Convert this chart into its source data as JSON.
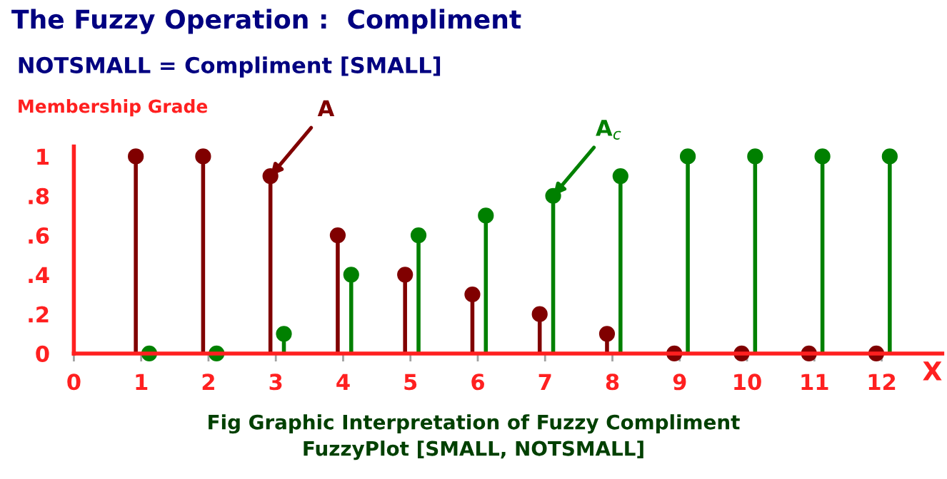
{
  "chart_data": {
    "type": "lollipop",
    "title": "The Fuzzy Operation :  Compliment",
    "subtitle": "NOTSMALL = Compliment [SMALL]",
    "ylabel": "Membership Grade",
    "xlabel": "X",
    "xlim": [
      0,
      12.9
    ],
    "xticks": [
      0,
      1,
      2,
      3,
      4,
      5,
      6,
      7,
      8,
      9,
      10,
      11,
      12
    ],
    "ylim": [
      0,
      1.05
    ],
    "yticks": [
      {
        "value": 0,
        "label": "0"
      },
      {
        "value": 0.2,
        "label": ".2"
      },
      {
        "value": 0.4,
        "label": ".4"
      },
      {
        "value": 0.6,
        "label": ".6"
      },
      {
        "value": 0.8,
        "label": ".8"
      },
      {
        "value": 1,
        "label": "1"
      }
    ],
    "marker": "circle",
    "grid": false,
    "legend": false,
    "series": [
      {
        "color": "#800000",
        "x": [
          0.92,
          1.92,
          2.92,
          3.92,
          4.92,
          5.92,
          6.92,
          7.92,
          8.92,
          9.92,
          10.92,
          11.92
        ],
        "values": [
          1,
          1,
          0.9,
          0.6,
          0.4,
          0.3,
          0.2,
          0.1,
          0,
          0,
          0,
          0
        ]
      },
      {
        "color": "#008000",
        "x": [
          1.12,
          2.12,
          3.12,
          4.12,
          5.12,
          6.12,
          7.12,
          8.12,
          9.12,
          10.12,
          11.12,
          12.12
        ],
        "values": [
          0,
          0,
          0.1,
          0.4,
          0.6,
          0.7,
          0.8,
          0.9,
          1,
          1,
          1,
          1
        ]
      }
    ],
    "annotations": [
      {
        "text": "A",
        "x": 2.92,
        "y": 0.9
      },
      {
        "text": "A$_{c}$",
        "x": 7.12,
        "y": 0.8
      },
      "Fig Graphic Interpretation of Fuzzy Compliment",
      "FuzzyPlot [SMALL, NOTSMALL]"
    ]
  }
}
